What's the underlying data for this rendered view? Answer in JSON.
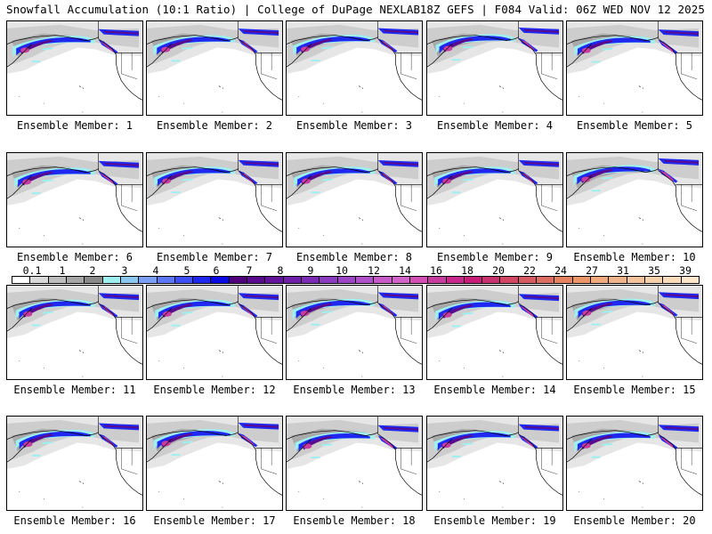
{
  "header": {
    "left_title": "Snowfall Accumulation (10:1 Ratio) | College of DuPage NEXLAB",
    "right_title": "18Z GEFS | F084 Valid: 06Z WED NOV 12 2025"
  },
  "panels": [
    {
      "label": "Ensemble Member: 1"
    },
    {
      "label": "Ensemble Member: 2"
    },
    {
      "label": "Ensemble Member: 3"
    },
    {
      "label": "Ensemble Member: 4"
    },
    {
      "label": "Ensemble Member: 5"
    },
    {
      "label": "Ensemble Member: 6"
    },
    {
      "label": "Ensemble Member: 7"
    },
    {
      "label": "Ensemble Member: 8"
    },
    {
      "label": "Ensemble Member: 9"
    },
    {
      "label": "Ensemble Member: 10"
    },
    {
      "label": "Ensemble Member: 11"
    },
    {
      "label": "Ensemble Member: 12"
    },
    {
      "label": "Ensemble Member: 13"
    },
    {
      "label": "Ensemble Member: 14"
    },
    {
      "label": "Ensemble Member: 15"
    },
    {
      "label": "Ensemble Member: 16"
    },
    {
      "label": "Ensemble Member: 17"
    },
    {
      "label": "Ensemble Member: 18"
    },
    {
      "label": "Ensemble Member: 19"
    },
    {
      "label": "Ensemble Member: 20"
    }
  ],
  "colorbar": {
    "tick_labels": [
      "0.1",
      "1",
      "2",
      "3",
      "4",
      "5",
      "6",
      "7",
      "8",
      "9",
      "10",
      "12",
      "14",
      "16",
      "18",
      "20",
      "22",
      "24",
      "27",
      "31",
      "35",
      "39"
    ],
    "swatches": [
      "#ffffff",
      "#d9d9d9",
      "#bdbdbd",
      "#a6a6a6",
      "#8a8a8a",
      "#9ef0f0",
      "#8cc8f0",
      "#7aa0f5",
      "#5a78f5",
      "#3c50f5",
      "#1e28f0",
      "#0a0ae6",
      "#50007a",
      "#5a0a8c",
      "#64149b",
      "#7020a8",
      "#7c2cb4",
      "#8c3cbe",
      "#9c46c6",
      "#b050c8",
      "#c85ac8",
      "#d264c8",
      "#d250b4",
      "#c83ca0",
      "#c8288c",
      "#c81e78",
      "#c8326e",
      "#d24664",
      "#d75a5f",
      "#dc6e5f",
      "#e6825f",
      "#eb9669",
      "#f0aa7d",
      "#f0b48c",
      "#f5c39b",
      "#f5d2aa",
      "#fadcb9",
      "#ffe6c8"
    ]
  },
  "map_colors": {
    "land_snow_light": "#e6e6e6",
    "land_snow_mid": "#c8c8c8",
    "land_snow_dark": "#9a9a9a",
    "cyan": "#9ef0f0",
    "lightblue": "#7aa0f5",
    "blue": "#1e28f0",
    "purple": "#5a0a8c",
    "magenta": "#c83ca0"
  }
}
